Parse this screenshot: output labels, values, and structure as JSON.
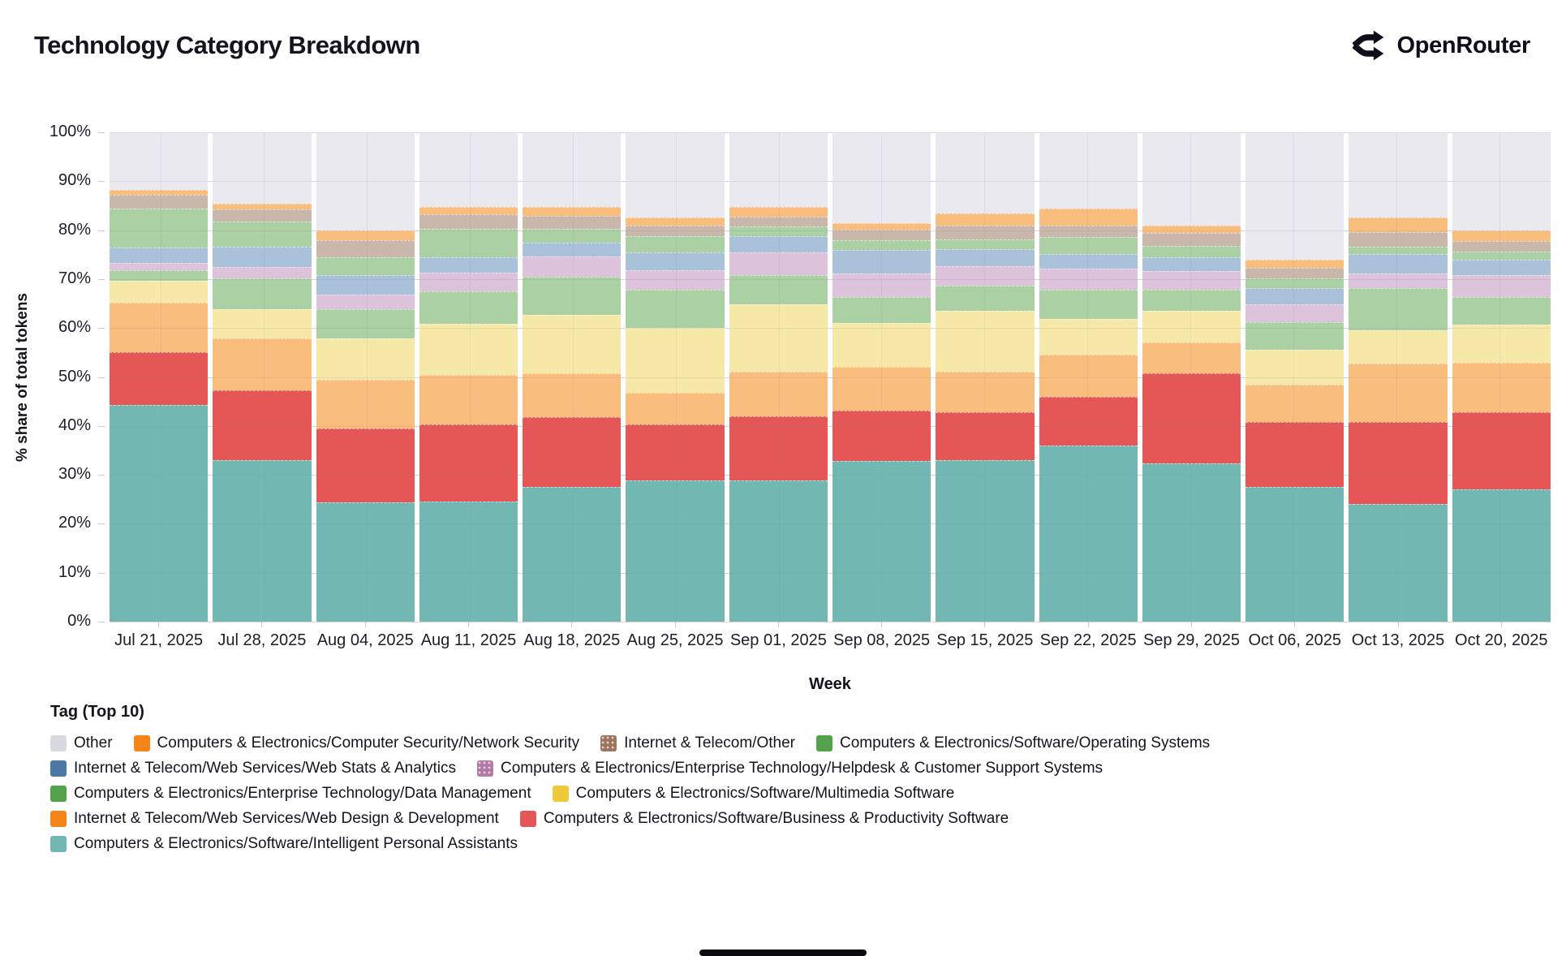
{
  "header": {
    "title": "Technology Category Breakdown",
    "brand": "OpenRouter"
  },
  "chart_data": {
    "type": "bar",
    "variant": "stacked-percent",
    "title": "Technology Category Breakdown",
    "xlabel": "Week",
    "ylabel": "% share of total tokens",
    "ylim": [
      0,
      100
    ],
    "grid": true,
    "legend_position": "bottom",
    "yticks": [
      "0%",
      "10%",
      "20%",
      "30%",
      "40%",
      "50%",
      "60%",
      "70%",
      "80%",
      "90%",
      "100%"
    ],
    "categories": [
      "Jul 21, 2025",
      "Jul 28, 2025",
      "Aug 04, 2025",
      "Aug 11, 2025",
      "Aug 18, 2025",
      "Aug 25, 2025",
      "Sep 01, 2025",
      "Sep 08, 2025",
      "Sep 15, 2025",
      "Sep 22, 2025",
      "Sep 29, 2025",
      "Oct 06, 2025",
      "Oct 13, 2025",
      "Oct 20, 2025"
    ],
    "series": [
      {
        "name": "Computers & Electronics/Software/Intelligent Personal Assistants",
        "fill": "#72b7b2",
        "dotted": false,
        "values": [
          44.3,
          33.0,
          24.4,
          24.5,
          27.6,
          28.8,
          28.9,
          32.9,
          33.0,
          36.0,
          32.4,
          27.6,
          24.1,
          27.0
        ]
      },
      {
        "name": "Computers & Electronics/Software/Business & Productivity Software",
        "fill": "#e45756",
        "dotted": false,
        "values": [
          10.8,
          14.3,
          15.1,
          15.8,
          14.2,
          11.5,
          13.0,
          10.3,
          9.8,
          10.0,
          18.3,
          13.2,
          16.7,
          15.8
        ]
      },
      {
        "name": "Internet & Telecom/Web Services/Web Design & Development",
        "fill": "#f9bd7e",
        "dotted": false,
        "values": [
          10.0,
          10.5,
          10.0,
          10.2,
          9.0,
          6.4,
          9.2,
          8.8,
          8.3,
          8.6,
          6.4,
          7.7,
          11.9,
          10.1
        ]
      },
      {
        "name": "Computers & Electronics/Software/Multimedia Software",
        "fill": "#f6e8a7",
        "dotted": false,
        "values": [
          4.5,
          6.0,
          8.3,
          10.3,
          11.9,
          13.3,
          13.7,
          9.1,
          12.4,
          7.3,
          6.4,
          7.0,
          6.8,
          7.8
        ]
      },
      {
        "name": "Computers & Electronics/Enterprise Technology/Data Management",
        "fill": "#aad0a4",
        "dotted": false,
        "values": [
          2.2,
          6.4,
          6.0,
          6.7,
          7.8,
          7.8,
          6.0,
          5.3,
          5.2,
          5.9,
          4.3,
          5.7,
          8.7,
          5.7
        ]
      },
      {
        "name": "Computers & Electronics/Enterprise Technology/Helpdesk & Customer Support Systems",
        "fill": "#dcc2da",
        "dotted": true,
        "values": [
          1.5,
          2.3,
          3.1,
          3.8,
          4.1,
          4.0,
          4.7,
          4.7,
          3.9,
          4.3,
          3.8,
          3.6,
          2.9,
          4.4
        ]
      },
      {
        "name": "Internet & Telecom/Web Services/Web Stats & Analytics",
        "fill": "#a9c1d9",
        "dotted": false,
        "values": [
          3.1,
          4.2,
          4.0,
          3.2,
          2.9,
          3.7,
          3.3,
          4.9,
          3.5,
          3.1,
          2.8,
          3.3,
          4.0,
          3.2
        ]
      },
      {
        "name": "Computers & Electronics/Software/Operating Systems",
        "fill": "#aad0a4",
        "dotted": false,
        "values": [
          8.0,
          5.1,
          3.6,
          5.7,
          2.7,
          3.3,
          1.9,
          1.9,
          2.0,
          3.5,
          2.4,
          2.1,
          1.5,
          1.6
        ]
      },
      {
        "name": "Internet & Telecom/Other",
        "fill": "#cab7ab",
        "dotted": true,
        "values": [
          2.8,
          2.5,
          3.4,
          3.0,
          2.8,
          2.1,
          2.1,
          2.2,
          2.9,
          2.3,
          2.7,
          2.1,
          3.0,
          2.2
        ]
      },
      {
        "name": "Computers & Electronics/Computer Security/Network Security",
        "fill": "#f9bd7e",
        "dotted": false,
        "values": [
          1.1,
          1.1,
          2.1,
          1.6,
          1.8,
          1.7,
          2.0,
          1.4,
          2.5,
          3.4,
          1.5,
          1.6,
          3.0,
          2.2
        ]
      },
      {
        "name": "Other",
        "fill": "#e9e9ef",
        "dotted": false,
        "values": [
          11.7,
          14.6,
          20.0,
          15.2,
          15.2,
          17.4,
          15.2,
          18.5,
          16.5,
          15.6,
          19.0,
          26.1,
          17.4,
          20.0
        ]
      }
    ]
  },
  "legend": {
    "title": "Tag (Top 10)",
    "items": [
      {
        "label": "Other",
        "color": "#d9d9e2",
        "dotted": false
      },
      {
        "label": "Computers & Electronics/Computer Security/Network Security",
        "color": "#f58518",
        "dotted": false
      },
      {
        "label": "Internet & Telecom/Other",
        "color": "#9d755d",
        "dotted": true
      },
      {
        "label": "Computers & Electronics/Software/Operating Systems",
        "color": "#54a24b",
        "dotted": false
      },
      {
        "label": "Internet & Telecom/Web Services/Web Stats & Analytics",
        "color": "#4c78a8",
        "dotted": false
      },
      {
        "label": "Computers & Electronics/Enterprise Technology/Helpdesk & Customer Support Systems",
        "color": "#b279a2",
        "dotted": true
      },
      {
        "label": "Computers & Electronics/Enterprise Technology/Data Management",
        "color": "#54a24b",
        "dotted": false
      },
      {
        "label": "Computers & Electronics/Software/Multimedia Software",
        "color": "#eeca3b",
        "dotted": false
      },
      {
        "label": "Internet & Telecom/Web Services/Web Design & Development",
        "color": "#f58518",
        "dotted": false
      },
      {
        "label": "Computers & Electronics/Software/Business & Productivity Software",
        "color": "#e45756",
        "dotted": false
      },
      {
        "label": "Computers & Electronics/Software/Intelligent Personal Assistants",
        "color": "#72b7b2",
        "dotted": false
      }
    ]
  }
}
